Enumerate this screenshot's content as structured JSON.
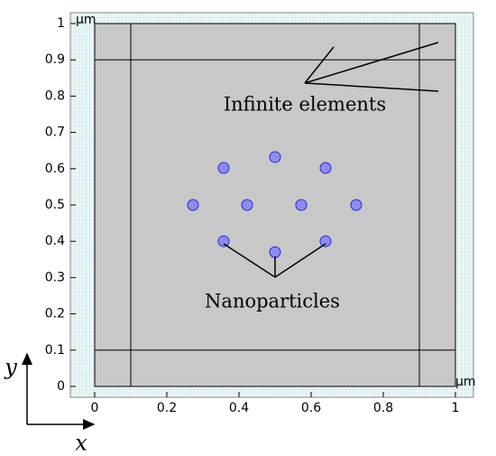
{
  "chart_data": {
    "type": "scatter",
    "unit_top": "μm",
    "unit_right": "μm",
    "x_label": "x",
    "y_label": "y",
    "annotations": [
      "Infinite elements",
      "Nanoparticles"
    ],
    "xlim": [
      -0.0675,
      1.05
    ],
    "ylim": [
      -0.03,
      1.03
    ],
    "xticks": [
      0,
      0.2,
      0.4,
      0.6,
      0.8,
      1
    ],
    "yticks": [
      0,
      0.1,
      0.2,
      0.3,
      0.4,
      0.5,
      0.6,
      0.7,
      0.8,
      0.9,
      1
    ],
    "domain": [
      0,
      1
    ],
    "layer_boundaries": [
      0.1,
      0.9
    ],
    "color": "#8c8cf0",
    "x": [
      0.2725,
      0.4225,
      0.5725,
      0.725,
      0.3575,
      0.5,
      0.64,
      0.3575,
      0.5,
      0.64
    ],
    "y": [
      0.5,
      0.5,
      0.5,
      0.5,
      0.602,
      0.632,
      0.602,
      0.4,
      0.37,
      0.4
    ]
  }
}
